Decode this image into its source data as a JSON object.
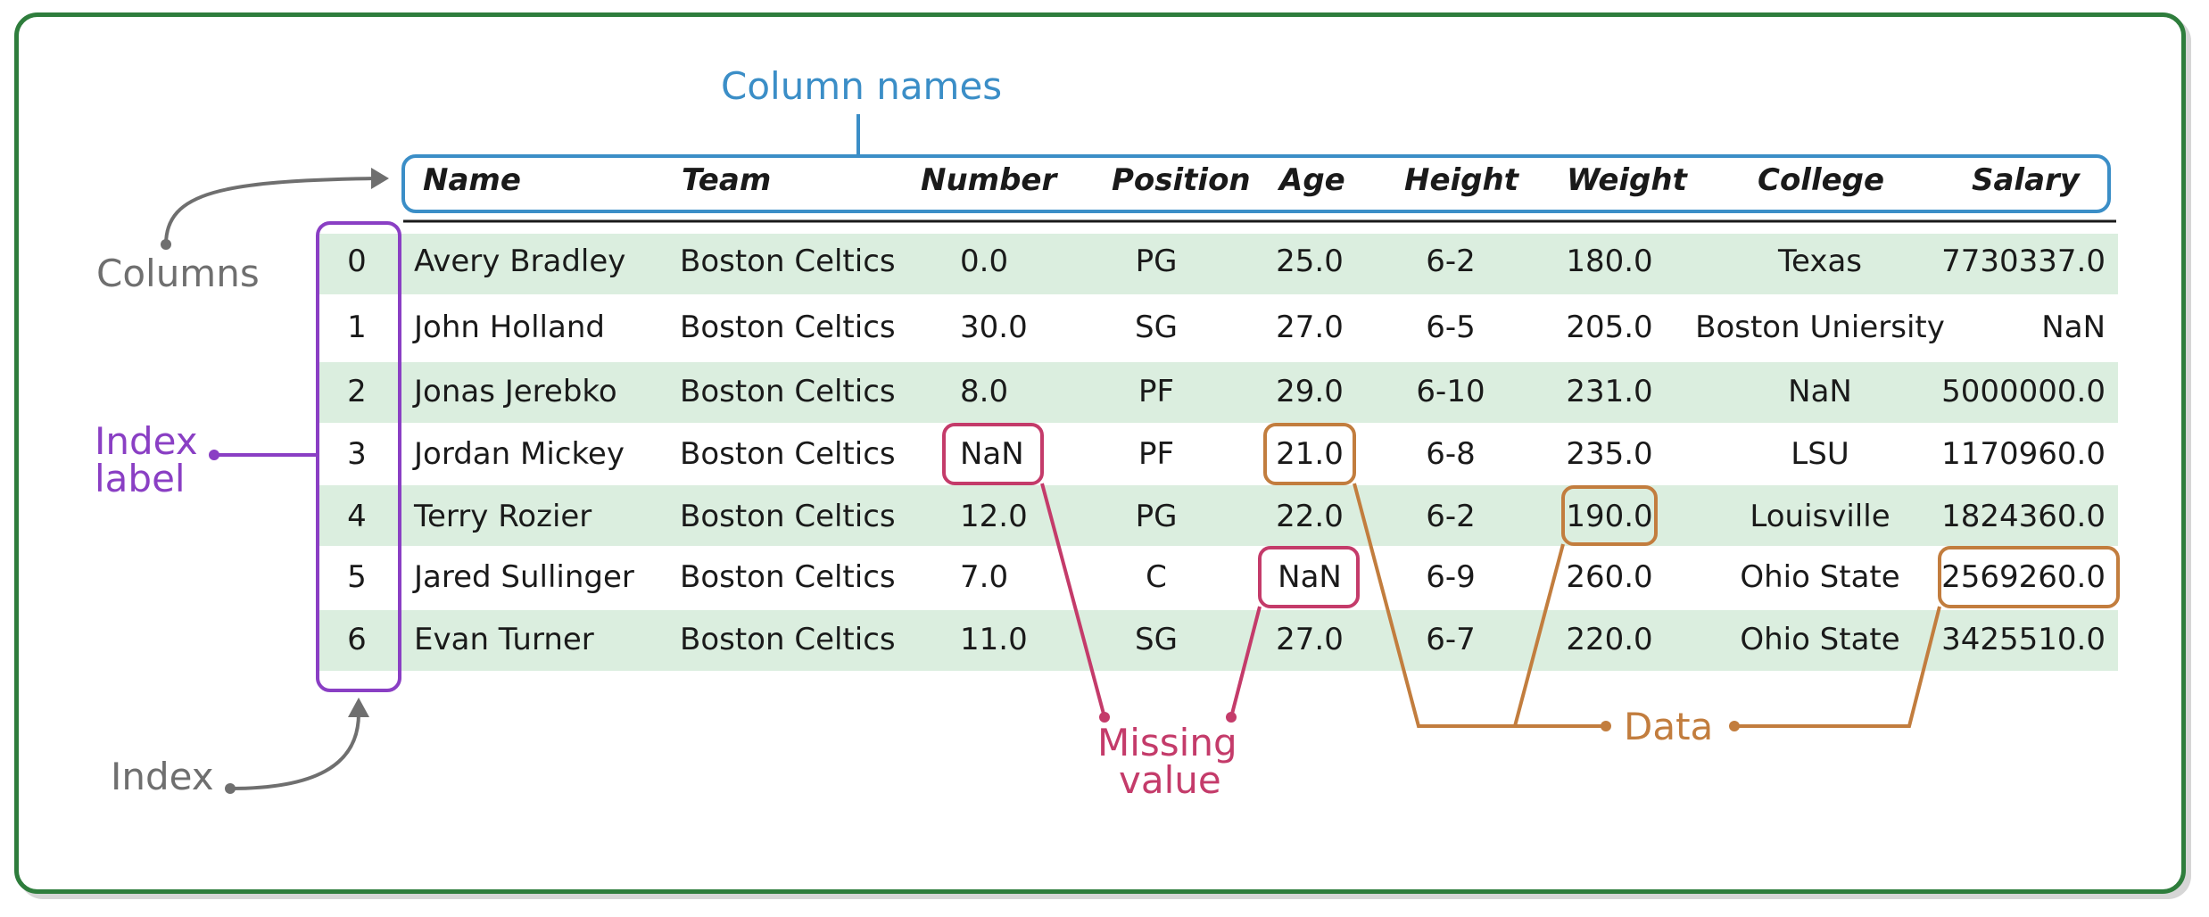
{
  "labels": {
    "column_names": "Column names",
    "columns": "Columns",
    "index_label_1": "Index",
    "index_label_2": "label",
    "index": "Index",
    "missing_1": "Missing",
    "missing_2": "value",
    "data": "Data"
  },
  "colors": {
    "frame": "#2e7d3c",
    "column_names": "#3b8ec7",
    "index_label": "#8a3fc4",
    "gray": "#6f6f6f",
    "missing": "#c43b6a",
    "data": "#c27d3e",
    "row_stripe": "#dbeedf"
  },
  "table": {
    "headers": [
      "Name",
      "Team",
      "Number",
      "Position",
      "Age",
      "Height",
      "Weight",
      "College",
      "Salary"
    ],
    "index": [
      "0",
      "1",
      "2",
      "3",
      "4",
      "5",
      "6"
    ],
    "rows": [
      [
        "Avery Bradley",
        "Boston Celtics",
        "0.0",
        "PG",
        "25.0",
        "6-2",
        "180.0",
        "Texas",
        "7730337.0"
      ],
      [
        "John Holland",
        "Boston Celtics",
        "30.0",
        "SG",
        "27.0",
        "6-5",
        "205.0",
        "Boston Uniersity",
        "NaN"
      ],
      [
        "Jonas Jerebko",
        "Boston Celtics",
        "8.0",
        "PF",
        "29.0",
        "6-10",
        "231.0",
        "NaN",
        "5000000.0"
      ],
      [
        "Jordan Mickey",
        "Boston Celtics",
        "NaN",
        "PF",
        "21.0",
        "6-8",
        "235.0",
        "LSU",
        "1170960.0"
      ],
      [
        "Terry Rozier",
        "Boston Celtics",
        "12.0",
        "PG",
        "22.0",
        "6-2",
        "190.0",
        "Louisville",
        "1824360.0"
      ],
      [
        "Jared Sullinger",
        "Boston Celtics",
        "7.0",
        "C",
        "NaN",
        "6-9",
        "260.0",
        "Ohio State",
        "2569260.0"
      ],
      [
        "Evan Turner",
        "Boston Celtics",
        "11.0",
        "SG",
        "27.0",
        "6-7",
        "220.0",
        "Ohio State",
        "3425510.0"
      ]
    ]
  }
}
